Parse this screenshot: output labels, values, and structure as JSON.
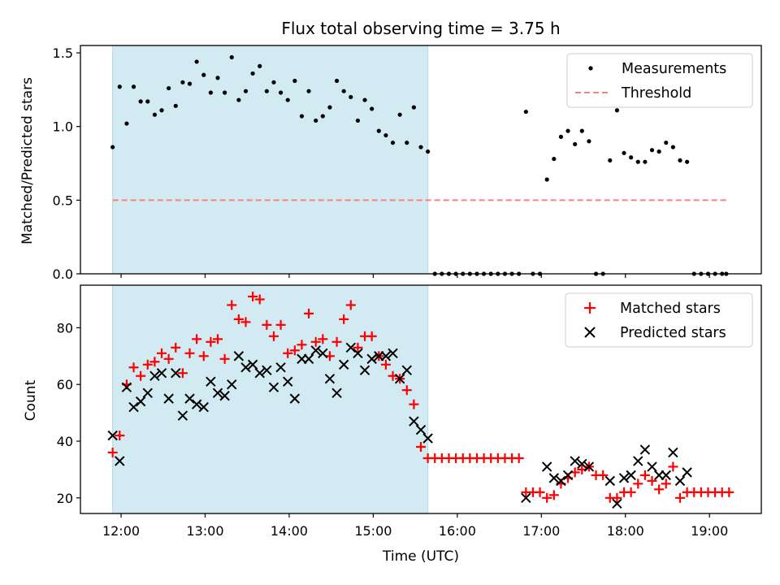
{
  "figure": {
    "title": "Flux total observing time = 3.75 h",
    "xlabel": "Time (UTC)"
  },
  "colors": {
    "shade": "#add8e6",
    "matched": "#ff0000",
    "predicted": "#000000",
    "measurements": "#000000",
    "threshold": "#ff7f7f"
  },
  "chart_data": [
    {
      "type": "scatter",
      "panel": "top",
      "ylabel": "Matched/Predicted stars",
      "xlim": [
        "11:31",
        "19:37"
      ],
      "ylim": [
        0,
        1.55
      ],
      "yticks": [
        "0.0",
        "0.5",
        "1.0",
        "1.5"
      ],
      "xticks": [
        "12:00",
        "13:00",
        "14:00",
        "15:00",
        "16:00",
        "17:00",
        "18:00",
        "19:00"
      ],
      "shaded_interval": [
        "11:54",
        "15:39"
      ],
      "legend": {
        "location": "upper right",
        "entries": [
          "Measurements",
          "Threshold"
        ]
      },
      "threshold": {
        "name": "Threshold",
        "value": 0.5,
        "x_range": [
          "11:54",
          "19:12"
        ],
        "style": "dashed"
      },
      "series": [
        {
          "name": "Measurements",
          "marker": "dot",
          "points": [
            [
              "11:54",
              0.86
            ],
            [
              "11:59",
              1.27
            ],
            [
              "12:04",
              1.02
            ],
            [
              "12:09",
              1.27
            ],
            [
              "12:14",
              1.17
            ],
            [
              "12:19",
              1.17
            ],
            [
              "12:24",
              1.08
            ],
            [
              "12:29",
              1.11
            ],
            [
              "12:34",
              1.26
            ],
            [
              "12:39",
              1.14
            ],
            [
              "12:44",
              1.3
            ],
            [
              "12:49",
              1.29
            ],
            [
              "12:54",
              1.44
            ],
            [
              "12:59",
              1.35
            ],
            [
              "13:04",
              1.23
            ],
            [
              "13:09",
              1.33
            ],
            [
              "13:14",
              1.23
            ],
            [
              "13:19",
              1.47
            ],
            [
              "13:24",
              1.18
            ],
            [
              "13:29",
              1.24
            ],
            [
              "13:34",
              1.36
            ],
            [
              "13:39",
              1.41
            ],
            [
              "13:44",
              1.24
            ],
            [
              "13:49",
              1.3
            ],
            [
              "13:54",
              1.23
            ],
            [
              "13:59",
              1.18
            ],
            [
              "14:04",
              1.31
            ],
            [
              "14:09",
              1.07
            ],
            [
              "14:14",
              1.24
            ],
            [
              "14:19",
              1.04
            ],
            [
              "14:24",
              1.07
            ],
            [
              "14:29",
              1.13
            ],
            [
              "14:34",
              1.31
            ],
            [
              "14:39",
              1.24
            ],
            [
              "14:44",
              1.2
            ],
            [
              "14:49",
              1.04
            ],
            [
              "14:54",
              1.18
            ],
            [
              "14:59",
              1.12
            ],
            [
              "15:04",
              0.97
            ],
            [
              "15:09",
              0.94
            ],
            [
              "15:14",
              0.89
            ],
            [
              "15:19",
              1.08
            ],
            [
              "15:24",
              0.89
            ],
            [
              "15:29",
              1.13
            ],
            [
              "15:34",
              0.86
            ],
            [
              "15:39",
              0.83
            ],
            [
              "15:44",
              0.0
            ],
            [
              "15:49",
              0.0
            ],
            [
              "15:54",
              0.0
            ],
            [
              "15:59",
              0.0
            ],
            [
              "16:04",
              0.0
            ],
            [
              "16:09",
              0.0
            ],
            [
              "16:14",
              0.0
            ],
            [
              "16:19",
              0.0
            ],
            [
              "16:24",
              0.0
            ],
            [
              "16:29",
              0.0
            ],
            [
              "16:34",
              0.0
            ],
            [
              "16:39",
              0.0
            ],
            [
              "16:44",
              0.0
            ],
            [
              "16:49",
              1.1
            ],
            [
              "16:54",
              0.0
            ],
            [
              "16:59",
              0.0
            ],
            [
              "17:04",
              0.64
            ],
            [
              "17:09",
              0.78
            ],
            [
              "17:14",
              0.93
            ],
            [
              "17:19",
              0.97
            ],
            [
              "17:24",
              0.88
            ],
            [
              "17:29",
              0.97
            ],
            [
              "17:34",
              0.9
            ],
            [
              "17:39",
              0.0
            ],
            [
              "17:44",
              0.0
            ],
            [
              "17:49",
              0.77
            ],
            [
              "17:54",
              1.11
            ],
            [
              "17:59",
              0.82
            ],
            [
              "18:04",
              0.79
            ],
            [
              "18:09",
              0.76
            ],
            [
              "18:14",
              0.76
            ],
            [
              "18:19",
              0.84
            ],
            [
              "18:24",
              0.83
            ],
            [
              "18:29",
              0.89
            ],
            [
              "18:34",
              0.86
            ],
            [
              "18:39",
              0.77
            ],
            [
              "18:44",
              0.76
            ],
            [
              "18:49",
              0.0
            ],
            [
              "18:54",
              0.0
            ],
            [
              "18:59",
              0.0
            ],
            [
              "19:04",
              0.0
            ],
            [
              "19:09",
              0.0
            ],
            [
              "19:12",
              0.0
            ]
          ]
        }
      ]
    },
    {
      "type": "scatter",
      "panel": "bottom",
      "ylabel": "Count",
      "xlabel": "Time (UTC)",
      "xlim": [
        "11:31",
        "19:37"
      ],
      "ylim": [
        14.5,
        95
      ],
      "yticks": [
        "20",
        "40",
        "60",
        "80"
      ],
      "xticks": [
        "12:00",
        "13:00",
        "14:00",
        "15:00",
        "16:00",
        "17:00",
        "18:00",
        "19:00"
      ],
      "shaded_interval": [
        "11:54",
        "15:39"
      ],
      "legend": {
        "location": "upper right",
        "entries": [
          "Matched stars",
          "Predicted stars"
        ]
      },
      "series": [
        {
          "name": "Matched stars",
          "marker": "plus",
          "points": [
            [
              "11:54",
              36
            ],
            [
              "11:59",
              42
            ],
            [
              "12:04",
              60
            ],
            [
              "12:09",
              66
            ],
            [
              "12:14",
              63
            ],
            [
              "12:19",
              67
            ],
            [
              "12:24",
              68
            ],
            [
              "12:29",
              71
            ],
            [
              "12:34",
              69
            ],
            [
              "12:39",
              73
            ],
            [
              "12:44",
              64
            ],
            [
              "12:49",
              71
            ],
            [
              "12:54",
              76
            ],
            [
              "12:59",
              70
            ],
            [
              "13:04",
              75
            ],
            [
              "13:09",
              76
            ],
            [
              "13:14",
              69
            ],
            [
              "13:19",
              88
            ],
            [
              "13:24",
              83
            ],
            [
              "13:29",
              82
            ],
            [
              "13:34",
              91
            ],
            [
              "13:39",
              90
            ],
            [
              "13:44",
              81
            ],
            [
              "13:49",
              77
            ],
            [
              "13:54",
              81
            ],
            [
              "13:59",
              71
            ],
            [
              "14:04",
              72
            ],
            [
              "14:09",
              74
            ],
            [
              "14:14",
              85
            ],
            [
              "14:19",
              75
            ],
            [
              "14:24",
              76
            ],
            [
              "14:29",
              70
            ],
            [
              "14:34",
              75
            ],
            [
              "14:39",
              83
            ],
            [
              "14:44",
              88
            ],
            [
              "14:49",
              73
            ],
            [
              "14:54",
              77
            ],
            [
              "14:59",
              77
            ],
            [
              "15:04",
              70
            ],
            [
              "15:09",
              67
            ],
            [
              "15:14",
              63
            ],
            [
              "15:19",
              62
            ],
            [
              "15:24",
              58
            ],
            [
              "15:29",
              53
            ],
            [
              "15:34",
              38
            ],
            [
              "15:39",
              34
            ],
            [
              "15:44",
              34
            ],
            [
              "15:49",
              34
            ],
            [
              "15:54",
              34
            ],
            [
              "15:59",
              34
            ],
            [
              "16:04",
              34
            ],
            [
              "16:09",
              34
            ],
            [
              "16:14",
              34
            ],
            [
              "16:19",
              34
            ],
            [
              "16:24",
              34
            ],
            [
              "16:29",
              34
            ],
            [
              "16:34",
              34
            ],
            [
              "16:39",
              34
            ],
            [
              "16:44",
              34
            ],
            [
              "16:49",
              22
            ],
            [
              "16:54",
              22
            ],
            [
              "16:59",
              22
            ],
            [
              "17:04",
              20
            ],
            [
              "17:09",
              21
            ],
            [
              "17:14",
              25
            ],
            [
              "17:19",
              27
            ],
            [
              "17:24",
              29
            ],
            [
              "17:29",
              30
            ],
            [
              "17:34",
              31
            ],
            [
              "17:39",
              28
            ],
            [
              "17:44",
              28
            ],
            [
              "17:49",
              20
            ],
            [
              "17:54",
              20
            ],
            [
              "17:59",
              22
            ],
            [
              "18:04",
              22
            ],
            [
              "18:09",
              25
            ],
            [
              "18:14",
              28
            ],
            [
              "18:19",
              26
            ],
            [
              "18:24",
              23
            ],
            [
              "18:29",
              25
            ],
            [
              "18:34",
              31
            ],
            [
              "18:39",
              20
            ],
            [
              "18:44",
              22
            ],
            [
              "18:49",
              22
            ],
            [
              "18:54",
              22
            ],
            [
              "18:59",
              22
            ],
            [
              "19:04",
              22
            ],
            [
              "19:09",
              22
            ],
            [
              "19:14",
              22
            ]
          ]
        },
        {
          "name": "Predicted stars",
          "marker": "x",
          "points": [
            [
              "11:54",
              42
            ],
            [
              "11:59",
              33
            ],
            [
              "12:04",
              59
            ],
            [
              "12:09",
              52
            ],
            [
              "12:14",
              54
            ],
            [
              "12:19",
              57
            ],
            [
              "12:24",
              63
            ],
            [
              "12:29",
              64
            ],
            [
              "12:34",
              55
            ],
            [
              "12:39",
              64
            ],
            [
              "12:44",
              49
            ],
            [
              "12:49",
              55
            ],
            [
              "12:54",
              53
            ],
            [
              "12:59",
              52
            ],
            [
              "13:04",
              61
            ],
            [
              "13:09",
              57
            ],
            [
              "13:14",
              56
            ],
            [
              "13:19",
              60
            ],
            [
              "13:24",
              70
            ],
            [
              "13:29",
              66
            ],
            [
              "13:34",
              67
            ],
            [
              "13:39",
              64
            ],
            [
              "13:44",
              65
            ],
            [
              "13:49",
              59
            ],
            [
              "13:54",
              66
            ],
            [
              "13:59",
              61
            ],
            [
              "14:04",
              55
            ],
            [
              "14:09",
              69
            ],
            [
              "14:14",
              69
            ],
            [
              "14:19",
              72
            ],
            [
              "14:24",
              71
            ],
            [
              "14:29",
              62
            ],
            [
              "14:34",
              57
            ],
            [
              "14:39",
              67
            ],
            [
              "14:44",
              73
            ],
            [
              "14:49",
              71
            ],
            [
              "14:54",
              65
            ],
            [
              "14:59",
              69
            ],
            [
              "15:04",
              70
            ],
            [
              "15:09",
              70
            ],
            [
              "15:14",
              71
            ],
            [
              "15:19",
              62
            ],
            [
              "15:24",
              65
            ],
            [
              "15:29",
              47
            ],
            [
              "15:34",
              44
            ],
            [
              "15:39",
              41
            ],
            [
              "16:49",
              20
            ],
            [
              "17:04",
              31
            ],
            [
              "17:09",
              27
            ],
            [
              "17:14",
              26
            ],
            [
              "17:19",
              28
            ],
            [
              "17:24",
              33
            ],
            [
              "17:29",
              32
            ],
            [
              "17:34",
              31
            ],
            [
              "17:49",
              26
            ],
            [
              "17:54",
              18
            ],
            [
              "17:59",
              27
            ],
            [
              "18:04",
              28
            ],
            [
              "18:09",
              33
            ],
            [
              "18:14",
              37
            ],
            [
              "18:19",
              31
            ],
            [
              "18:24",
              28
            ],
            [
              "18:29",
              28
            ],
            [
              "18:34",
              36
            ],
            [
              "18:39",
              26
            ],
            [
              "18:44",
              29
            ]
          ]
        }
      ]
    }
  ]
}
